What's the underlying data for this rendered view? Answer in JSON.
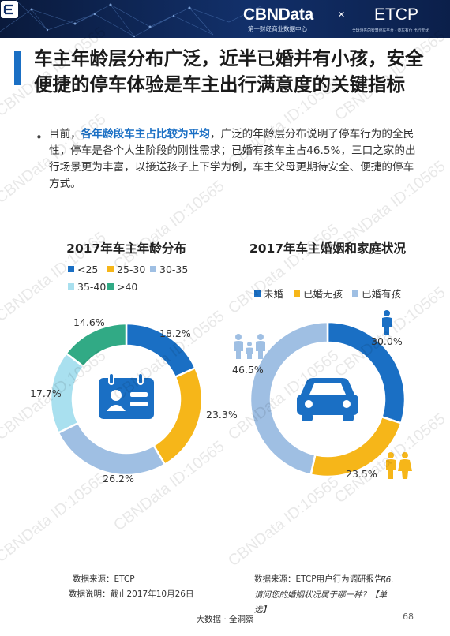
{
  "header": {
    "cbn_brand": "CBNData",
    "cbn_sub": "第一财经商业数据中心",
    "times": "×",
    "etcp_brand": "ETCP",
    "etcp_sub": "全球领先的智慧停车平台 · 停车有位 出行无忧",
    "accent_color": "#1a6fc4"
  },
  "title": "车主年龄层分布广泛，近半已婚并有小孩，安全便捷的停车体验是车主出行满意度的关键指标",
  "paragraph": {
    "prefix": "目前，",
    "highlight": "各年龄段车主占比较为平均",
    "rest": "，广泛的年龄层分布说明了停车行为的全民性，停车是各个人生阶段的刚性需求；已婚有孩车主占46.5%，三口之家的出行场景更为丰富，以接送孩子上下学为例，车主父母更期待安全、便捷的停车方式。"
  },
  "icons": {
    "bullet": "bullet-dot-icon",
    "left_center": "id-card-calendar-icon",
    "right_center": "car-icon",
    "single": "single-person-icon",
    "couple": "couple-icon",
    "family": "family-icon"
  },
  "chart_data": [
    {
      "type": "pie",
      "variant": "donut",
      "title": "2017年车主年龄分布",
      "categories": [
        "<25",
        "25-30",
        "30-35",
        "35-40",
        ">40"
      ],
      "values": [
        18.2,
        23.3,
        26.2,
        17.7,
        14.6
      ],
      "labels": [
        "18.2%",
        "23.3%",
        "26.2%",
        "17.7%",
        "14.6%"
      ],
      "colors": [
        "#1a6fc4",
        "#f6b619",
        "#9fbfe3",
        "#a9e0ef",
        "#31aa85"
      ],
      "legend_position": "top",
      "source": "数据来源：ETCP",
      "note": "数据说明：截止2017年10月26日"
    },
    {
      "type": "pie",
      "variant": "donut",
      "title": "2017年车主婚姻和家庭状况",
      "categories": [
        "未婚",
        "已婚无孩",
        "已婚有孩"
      ],
      "values": [
        30.0,
        23.5,
        46.5
      ],
      "labels": [
        "30.0%",
        "23.5%",
        "46.5%"
      ],
      "colors": [
        "#1a6fc4",
        "#f6b619",
        "#9fbfe3"
      ],
      "legend_position": "top",
      "source": "数据来源：ETCP用户行为调研报告；",
      "note": "E6.请问您的婚姻状况属于哪一种？【单选】"
    }
  ],
  "footer": {
    "text": "大数据 · 全洞察",
    "page": "68"
  },
  "watermark": "CBNData ID:10565"
}
